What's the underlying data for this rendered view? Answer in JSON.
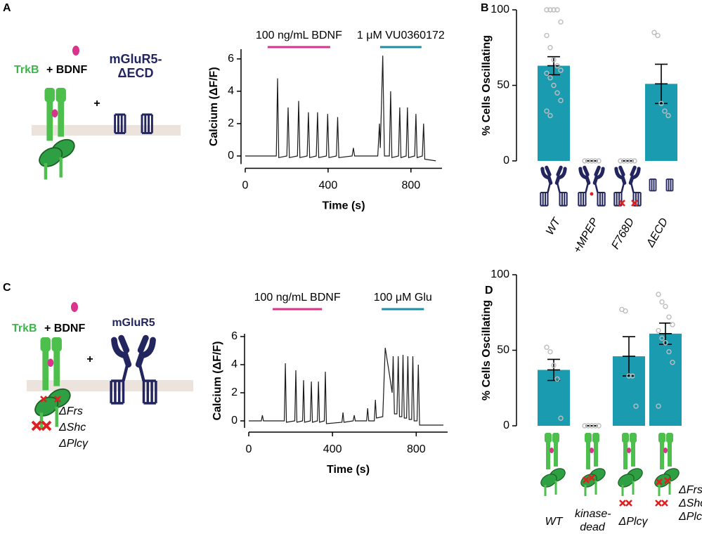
{
  "panel_labels": [
    "A",
    "B",
    "C",
    "D"
  ],
  "diagrams": {
    "a": {
      "trkb": "TrkB",
      "bdnf": "+ BDNF",
      "receptor": "mGluR5-ΔECD",
      "plus": "+"
    },
    "c": {
      "trkb": "TrkB",
      "bdnf": "+ BDNF",
      "receptor": "mGluR5",
      "plus": "+",
      "mutations": [
        "ΔFrs",
        "ΔShc",
        "ΔPlcγ"
      ]
    }
  },
  "chart_data": [
    {
      "type": "line",
      "x_label": "Time (s)",
      "y_label": "Calcium (ΔF/F)",
      "xlim": [
        0,
        950
      ],
      "ylim": [
        -0.5,
        6.6
      ],
      "xticks": [
        0,
        400,
        800
      ],
      "yticks": [
        0,
        2,
        4,
        6
      ],
      "color": "#1a1a1a",
      "annotations": [
        {
          "text": "100 ng/mL BDNF",
          "x": [
            108,
            410
          ],
          "color": "#d9338c"
        },
        {
          "text": "1 μM VU0360172",
          "x": [
            651,
            851
          ],
          "color": "#1a8fa6"
        }
      ],
      "x": [
        0,
        150,
        156,
        162,
        201,
        207,
        213,
        252,
        258,
        264,
        299,
        305,
        311,
        343,
        349,
        355,
        392,
        398,
        404,
        440,
        446,
        452,
        516,
        522,
        528,
        640,
        648,
        652,
        664,
        672,
        696,
        702,
        708,
        740,
        746,
        752,
        777,
        783,
        789,
        818,
        824,
        830,
        855,
        861,
        867,
        920
      ],
      "values": [
        0,
        0,
        4.8,
        -0.1,
        0,
        3.0,
        -0.1,
        0,
        3.4,
        -0.1,
        0,
        2.7,
        -0.1,
        0,
        2.7,
        -0.1,
        0,
        2.6,
        -0.1,
        0,
        2.4,
        -0.1,
        0,
        0.5,
        0,
        0,
        2.0,
        0.5,
        6.2,
        0,
        0,
        4.0,
        -0.1,
        0,
        3.0,
        -0.1,
        0,
        3.0,
        -0.1,
        0,
        2.6,
        -0.1,
        0,
        2.0,
        -0.2,
        -0.3
      ]
    },
    {
      "type": "bar",
      "y_label": "% Cells Oscillating",
      "categories": [
        "WT",
        "+MPEP",
        "F768D",
        "ΔECD"
      ],
      "values": [
        63,
        0,
        0,
        51
      ],
      "errors": [
        6,
        0,
        0,
        13
      ],
      "ylim": [
        0,
        100
      ],
      "yticks": [
        0,
        50,
        100
      ],
      "color": "#1a9bb0",
      "point_color": "#bdbdbd",
      "points": [
        [
          100,
          100,
          100,
          100,
          92,
          83,
          75,
          67,
          63,
          60,
          58,
          55,
          50,
          45,
          40,
          33,
          30
        ],
        [
          0,
          0,
          0,
          0,
          0
        ],
        [
          0,
          0,
          0,
          0,
          0
        ],
        [
          85,
          83,
          38,
          33,
          30
        ]
      ]
    },
    {
      "type": "line",
      "x_label": "Time (s)",
      "y_label": "Calcium (ΔF/F)",
      "xlim": [
        0,
        950
      ],
      "ylim": [
        -0.5,
        6.2
      ],
      "xticks": [
        0,
        400,
        800
      ],
      "yticks": [
        0,
        2,
        4,
        6
      ],
      "color": "#1a1a1a",
      "annotations": [
        {
          "text": "100 ng/mL BDNF",
          "x": [
            114,
            350
          ],
          "color": "#d9338c"
        },
        {
          "text": "100 μM Glu",
          "x": [
            635,
            837
          ],
          "color": "#1a8fa6"
        }
      ],
      "x": [
        0,
        60,
        65,
        70,
        170,
        175,
        180,
        220,
        225,
        230,
        257,
        262,
        267,
        294,
        299,
        304,
        328,
        333,
        338,
        361,
        366,
        371,
        445,
        450,
        455,
        499,
        504,
        509,
        563,
        568,
        573,
        600,
        605,
        610,
        640,
        652,
        670,
        685,
        690,
        696,
        708,
        714,
        720,
        731,
        737,
        743,
        754,
        760,
        766,
        778,
        784,
        790,
        804,
        810,
        816,
        930
      ],
      "values": [
        0,
        0,
        0.4,
        0,
        0,
        4.1,
        -0.1,
        0,
        3.6,
        -0.1,
        0,
        2.9,
        -0.1,
        0,
        2.8,
        -0.1,
        0,
        2.8,
        -0.1,
        0,
        3.5,
        -0.2,
        -0.1,
        0.6,
        -0.1,
        0,
        0.4,
        0,
        0,
        0.9,
        0,
        0,
        1.5,
        0.2,
        0.3,
        5.2,
        3.5,
        2.0,
        4.6,
        0.5,
        0.5,
        4.6,
        0.3,
        0.3,
        4.7,
        0.2,
        0.2,
        4.6,
        0.1,
        0.1,
        4.6,
        0,
        0,
        4.0,
        -0.3,
        -0.3
      ]
    },
    {
      "type": "bar",
      "y_label": "% Cells Oscillating",
      "categories": [
        "WT",
        "kinase-dead",
        "ΔPlcγ",
        "ΔFrs ΔShc ΔPlcγ"
      ],
      "values": [
        37,
        0,
        46,
        61
      ],
      "errors": [
        7,
        0,
        13,
        7
      ],
      "ylim": [
        0,
        100
      ],
      "yticks": [
        0,
        50,
        100
      ],
      "color": "#1a9bb0",
      "point_color": "#bdbdbd",
      "points": [
        [
          52,
          49,
          40,
          31,
          5
        ],
        [
          0,
          0,
          0,
          0,
          0
        ],
        [
          77,
          76,
          33,
          33,
          13
        ],
        [
          87,
          82,
          79,
          72,
          67,
          63,
          58,
          55,
          49,
          42,
          13
        ]
      ]
    }
  ]
}
